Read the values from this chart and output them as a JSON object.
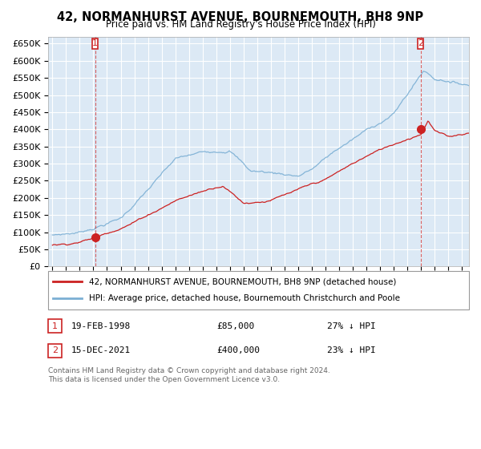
{
  "title": "42, NORMANHURST AVENUE, BOURNEMOUTH, BH8 9NP",
  "subtitle": "Price paid vs. HM Land Registry's House Price Index (HPI)",
  "ylabel_ticks": [
    "£0",
    "£50K",
    "£100K",
    "£150K",
    "£200K",
    "£250K",
    "£300K",
    "£350K",
    "£400K",
    "£450K",
    "£500K",
    "£550K",
    "£600K",
    "£650K"
  ],
  "ytick_values": [
    0,
    50000,
    100000,
    150000,
    200000,
    250000,
    300000,
    350000,
    400000,
    450000,
    500000,
    550000,
    600000,
    650000
  ],
  "hpi_color": "#7bafd4",
  "price_color": "#cc2222",
  "legend_line1": "42, NORMANHURST AVENUE, BOURNEMOUTH, BH8 9NP (detached house)",
  "legend_line2": "HPI: Average price, detached house, Bournemouth Christchurch and Poole",
  "sale1_date": "19-FEB-1998",
  "sale1_price": "£85,000",
  "sale1_hpi": "27% ↓ HPI",
  "sale2_date": "15-DEC-2021",
  "sale2_price": "£400,000",
  "sale2_hpi": "23% ↓ HPI",
  "footnote": "Contains HM Land Registry data © Crown copyright and database right 2024.\nThis data is licensed under the Open Government Licence v3.0.",
  "background_color": "#ffffff",
  "plot_bg_color": "#dce9f5",
  "grid_color": "#ffffff"
}
